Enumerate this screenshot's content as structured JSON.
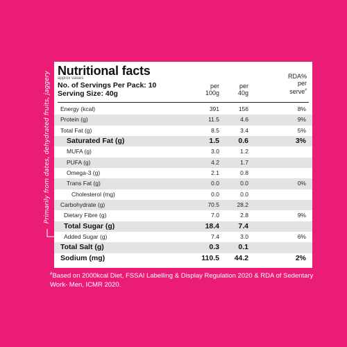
{
  "panel": {
    "title": "Nutritional facts",
    "approx_note": "approx values",
    "servings": "No. of Servings Per Pack: 10",
    "serving_size": "Serving Size: 40g",
    "columns": {
      "per100_line1": "per",
      "per100_line2": "100g",
      "per40_line1": "per",
      "per40_line2": "40g",
      "rda_line1": "RDA%",
      "rda_line2": "per",
      "rda_line3": "serve",
      "rda_mark": "#"
    }
  },
  "side_note": "Primarily from dates, dehydrated fruits, jaggery",
  "nutrients": [
    {
      "label": "Energy (kcal)",
      "per100": "391",
      "per40": "156",
      "rda": "8%"
    },
    {
      "label": "Protein (g)",
      "per100": "11.5",
      "per40": "4.6",
      "rda": "9%"
    },
    {
      "label": "Total Fat (g)",
      "per100": "8.5",
      "per40": "3.4",
      "rda": "5%"
    },
    {
      "label": "Saturated Fat (g)",
      "per100": "1.5",
      "per40": "0.6",
      "rda": "3%"
    },
    {
      "label": "MUFA (g)",
      "per100": "3.0",
      "per40": "1.2",
      "rda": ""
    },
    {
      "label": "PUFA (g)",
      "per100": "4.2",
      "per40": "1.7",
      "rda": ""
    },
    {
      "label": "Omega-3 (g)",
      "per100": "2.1",
      "per40": "0.8",
      "rda": ""
    },
    {
      "label": "Trans Fat (g)",
      "per100": "0.0",
      "per40": "0.0",
      "rda": "0%"
    },
    {
      "label": "Cholesterol (mg)",
      "per100": "0.0",
      "per40": "0.0",
      "rda": ""
    },
    {
      "label": "Carbohydrate (g)",
      "per100": "70.5",
      "per40": "28.2",
      "rda": ""
    },
    {
      "label": "Dietary Fibre (g)",
      "per100": "7.0",
      "per40": "2.8",
      "rda": "9%"
    },
    {
      "label": "Total Sugar (g)",
      "per100": "18.4",
      "per40": "7.4",
      "rda": ""
    },
    {
      "label": "Added Sugar (g)",
      "per100": "7.4",
      "per40": "3.0",
      "rda": "6%"
    },
    {
      "label": "Total Salt (g)",
      "per100": "0.3",
      "per40": "0.1",
      "rda": ""
    },
    {
      "label": "Sodium (mg)",
      "per100": "110.5",
      "per40": "44.2",
      "rda": "2%"
    }
  ],
  "footnote": {
    "mark": "#",
    "text": "Based on 2000kcal Diet, FSSAI Labelling & Display Regulation 2020 & RDA of Sedentary Work- Men, ICMR 2020."
  },
  "colors": {
    "background": "#ea1c75",
    "panel": "#ffffff",
    "shaded_row": "#e3e3e3",
    "text": "#1a1a1a"
  }
}
